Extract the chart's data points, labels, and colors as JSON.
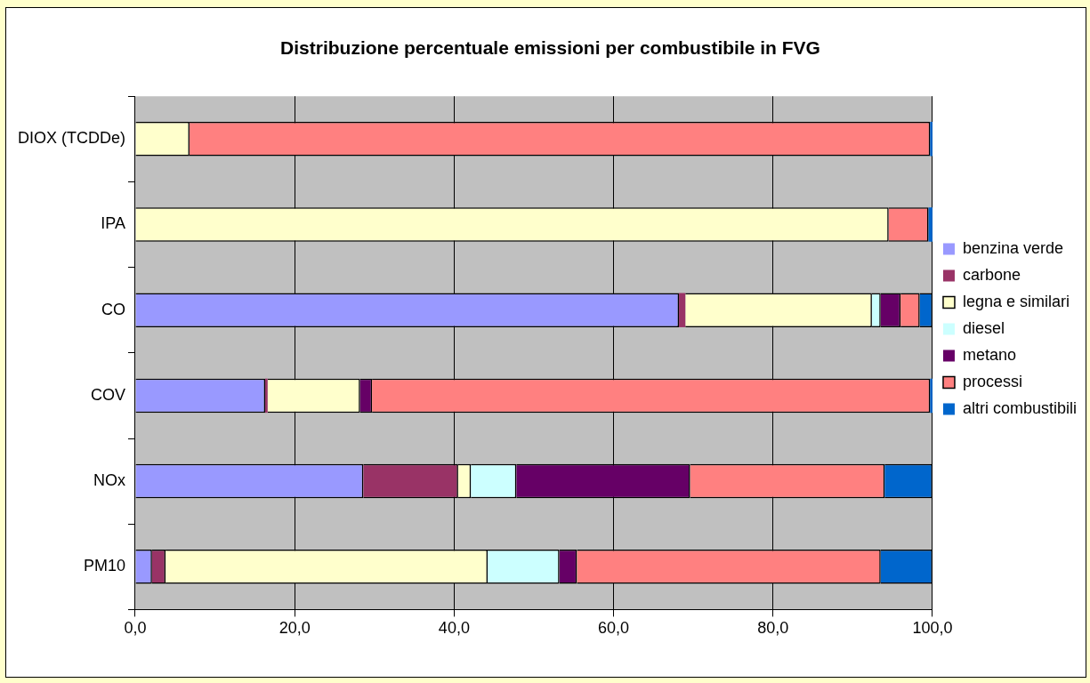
{
  "chart_data": {
    "type": "bar",
    "title": "Distribuzione percentuale emissioni per combustibile in FVG",
    "orientation": "horizontal",
    "stacked": true,
    "categories": [
      "DIOX (TCDDe)",
      "IPA",
      "CO",
      "COV",
      "NOx",
      "PM10"
    ],
    "series": [
      {
        "name": "benzina verde",
        "color": "#9999ff",
        "values": [
          0,
          0,
          68.2,
          16.3,
          28.6,
          2.1
        ]
      },
      {
        "name": "carbone",
        "color": "#993366",
        "values": [
          0,
          0,
          0.8,
          0.3,
          11.9,
          1.7
        ]
      },
      {
        "name": "legna e similari",
        "color": "#ffffcc",
        "values": [
          6.8,
          94.5,
          23.4,
          11.6,
          1.6,
          40.4
        ]
      },
      {
        "name": "diesel",
        "color": "#ccffff",
        "values": [
          0,
          0,
          1.1,
          0,
          5.7,
          9.0
        ]
      },
      {
        "name": "metano",
        "color": "#660066",
        "values": [
          0,
          0,
          2.5,
          1.5,
          21.8,
          2.2
        ]
      },
      {
        "name": "processi",
        "color": "#ff8080",
        "values": [
          92.9,
          5.0,
          2.4,
          70.0,
          24.4,
          38.1
        ]
      },
      {
        "name": "altri combustibili",
        "color": "#0066cc",
        "values": [
          0.3,
          0.5,
          1.6,
          0.3,
          6.0,
          6.5
        ]
      }
    ],
    "xlim": [
      0,
      100
    ],
    "xticks": [
      {
        "value": 0,
        "label": "0,0"
      },
      {
        "value": 20,
        "label": "20,0"
      },
      {
        "value": 40,
        "label": "40,0"
      },
      {
        "value": 60,
        "label": "60,0"
      },
      {
        "value": 80,
        "label": "80,0"
      },
      {
        "value": 100,
        "label": "100,0"
      }
    ],
    "grid": "x",
    "legend": "right"
  }
}
